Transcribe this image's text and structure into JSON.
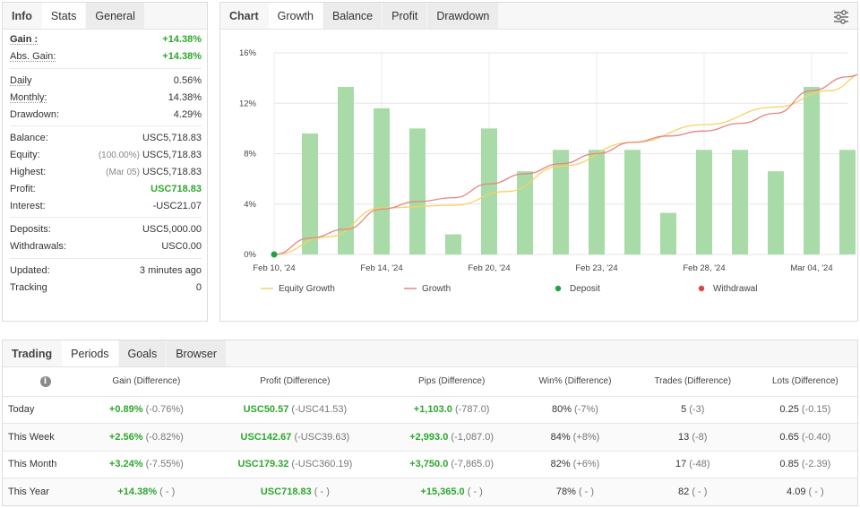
{
  "stats_panel": {
    "tabs": [
      {
        "label": "Info"
      },
      {
        "label": "Stats"
      },
      {
        "label": "General"
      }
    ],
    "rows": {
      "gain": {
        "label": "Gain :",
        "value": "+14.38%"
      },
      "abs_gain": {
        "label": "Abs. Gain:",
        "value": "+14.38%"
      },
      "daily": {
        "label": "Daily",
        "value": "0.56%"
      },
      "monthly": {
        "label": "Monthly:",
        "value": "14.38%"
      },
      "drawdown": {
        "label": "Drawdown:",
        "value": "4.29%"
      },
      "balance": {
        "label": "Balance:",
        "value": "USC5,718.83"
      },
      "equity": {
        "label": "Equity:",
        "note": "(100.00%)",
        "value": "USC5,718.83"
      },
      "highest": {
        "label": "Highest:",
        "note": "(Mar 05)",
        "value": "USC5,718.83"
      },
      "profit": {
        "label": "Profit:",
        "value": "USC718.83"
      },
      "interest": {
        "label": "Interest:",
        "value": "-USC21.07"
      },
      "deposits": {
        "label": "Deposits:",
        "value": "USC5,000.00"
      },
      "withdrawals": {
        "label": "Withdrawals:",
        "value": "USC0.00"
      },
      "updated": {
        "label": "Updated:",
        "value": "3 minutes ago"
      },
      "tracking": {
        "label": "Tracking",
        "value": "0"
      }
    }
  },
  "chart_panel": {
    "tabs": [
      {
        "label": "Chart"
      },
      {
        "label": "Growth"
      },
      {
        "label": "Balance"
      },
      {
        "label": "Profit"
      },
      {
        "label": "Drawdown"
      }
    ],
    "settings_icon": "sliders-icon"
  },
  "chart_data": {
    "type": "bar",
    "ylim": [
      0,
      16
    ],
    "y_ticks": [
      "0%",
      "4%",
      "8%",
      "12%",
      "16%"
    ],
    "x_tick_labels": [
      "Feb 10, '24",
      "Feb 14, '24",
      "Feb 20, '24",
      "Feb 23, '24",
      "Feb 28, '24",
      "Mar 04, '24"
    ],
    "x_tick_index": [
      0,
      3,
      6,
      9,
      12,
      15
    ],
    "n_points": 17,
    "bars": [
      null,
      9.6,
      13.3,
      11.6,
      10.0,
      1.6,
      10.0,
      6.6,
      8.3,
      8.3,
      8.3,
      3.3,
      8.3,
      8.3,
      6.6,
      13.3,
      8.3
    ],
    "colors": {
      "bar": "#a8dba8",
      "equity": "#f5d264",
      "growth": "#e8847e",
      "deposit": "#1fa340",
      "withdrawal": "#e04444"
    },
    "series": [
      {
        "name": "Equity Growth",
        "x": [
          0,
          1.5,
          3,
          5,
          6.5,
          8,
          10,
          12,
          14,
          15.5,
          16.5
        ],
        "values": [
          0,
          1.4,
          3.7,
          3.9,
          5.0,
          7.0,
          8.9,
          10.3,
          11.7,
          13.0,
          14.4
        ]
      },
      {
        "name": "Growth",
        "x": [
          0,
          1,
          2,
          3,
          4,
          5,
          6,
          7,
          8,
          9,
          10,
          11,
          12,
          13,
          14,
          15,
          16,
          16.5
        ],
        "values": [
          0,
          1.3,
          2.0,
          3.6,
          4.2,
          4.5,
          5.6,
          6.4,
          7.2,
          8.0,
          8.9,
          9.4,
          9.8,
          10.4,
          11.2,
          13.0,
          14.1,
          14.4
        ]
      }
    ],
    "legend": [
      {
        "label": "Equity Growth",
        "kind": "line",
        "color": "#f5d264"
      },
      {
        "label": "Growth",
        "kind": "line",
        "color": "#e8847e"
      },
      {
        "label": "Deposit",
        "kind": "dot",
        "color": "#1fa340"
      },
      {
        "label": "Withdrawal",
        "kind": "dot",
        "color": "#e04444"
      }
    ]
  },
  "trading_panel": {
    "tabs": [
      {
        "label": "Trading"
      },
      {
        "label": "Periods"
      },
      {
        "label": "Goals"
      },
      {
        "label": "Browser"
      }
    ],
    "headers": [
      "Gain (Difference)",
      "Profit (Difference)",
      "Pips (Difference)",
      "Win% (Difference)",
      "Trades (Difference)",
      "Lots (Difference)"
    ],
    "rows": [
      {
        "period": "Today",
        "gain": "+0.89%",
        "gain_d": "(-0.76%)",
        "profit": "USC50.57",
        "profit_d": "(-USC41.53)",
        "pips": "+1,103.0",
        "pips_d": "(-787.0)",
        "win": "80%",
        "win_d": "(-7%)",
        "trades": "5",
        "trades_d": "(-3)",
        "lots": "0.25",
        "lots_d": "(-0.15)"
      },
      {
        "period": "This Week",
        "gain": "+2.56%",
        "gain_d": "(-0.82%)",
        "profit": "USC142.67",
        "profit_d": "(-USC39.63)",
        "pips": "+2,993.0",
        "pips_d": "(-1,087.0)",
        "win": "84%",
        "win_d": "(+8%)",
        "trades": "13",
        "trades_d": "(-8)",
        "lots": "0.65",
        "lots_d": "(-0.40)"
      },
      {
        "period": "This Month",
        "gain": "+3.24%",
        "gain_d": "(-7.55%)",
        "profit": "USC179.32",
        "profit_d": "(-USC360.19)",
        "pips": "+3,750.0",
        "pips_d": "(-7,865.0)",
        "win": "82%",
        "win_d": "(+6%)",
        "trades": "17",
        "trades_d": "(-48)",
        "lots": "0.85",
        "lots_d": "(-2.39)"
      },
      {
        "period": "This Year",
        "gain": "+14.38%",
        "gain_d": "( - )",
        "profit": "USC718.83",
        "profit_d": "( - )",
        "pips": "+15,365.0",
        "pips_d": "( - )",
        "win": "78%",
        "win_d": "( - )",
        "trades": "82",
        "trades_d": "( - )",
        "lots": "4.09",
        "lots_d": "( - )"
      }
    ]
  }
}
